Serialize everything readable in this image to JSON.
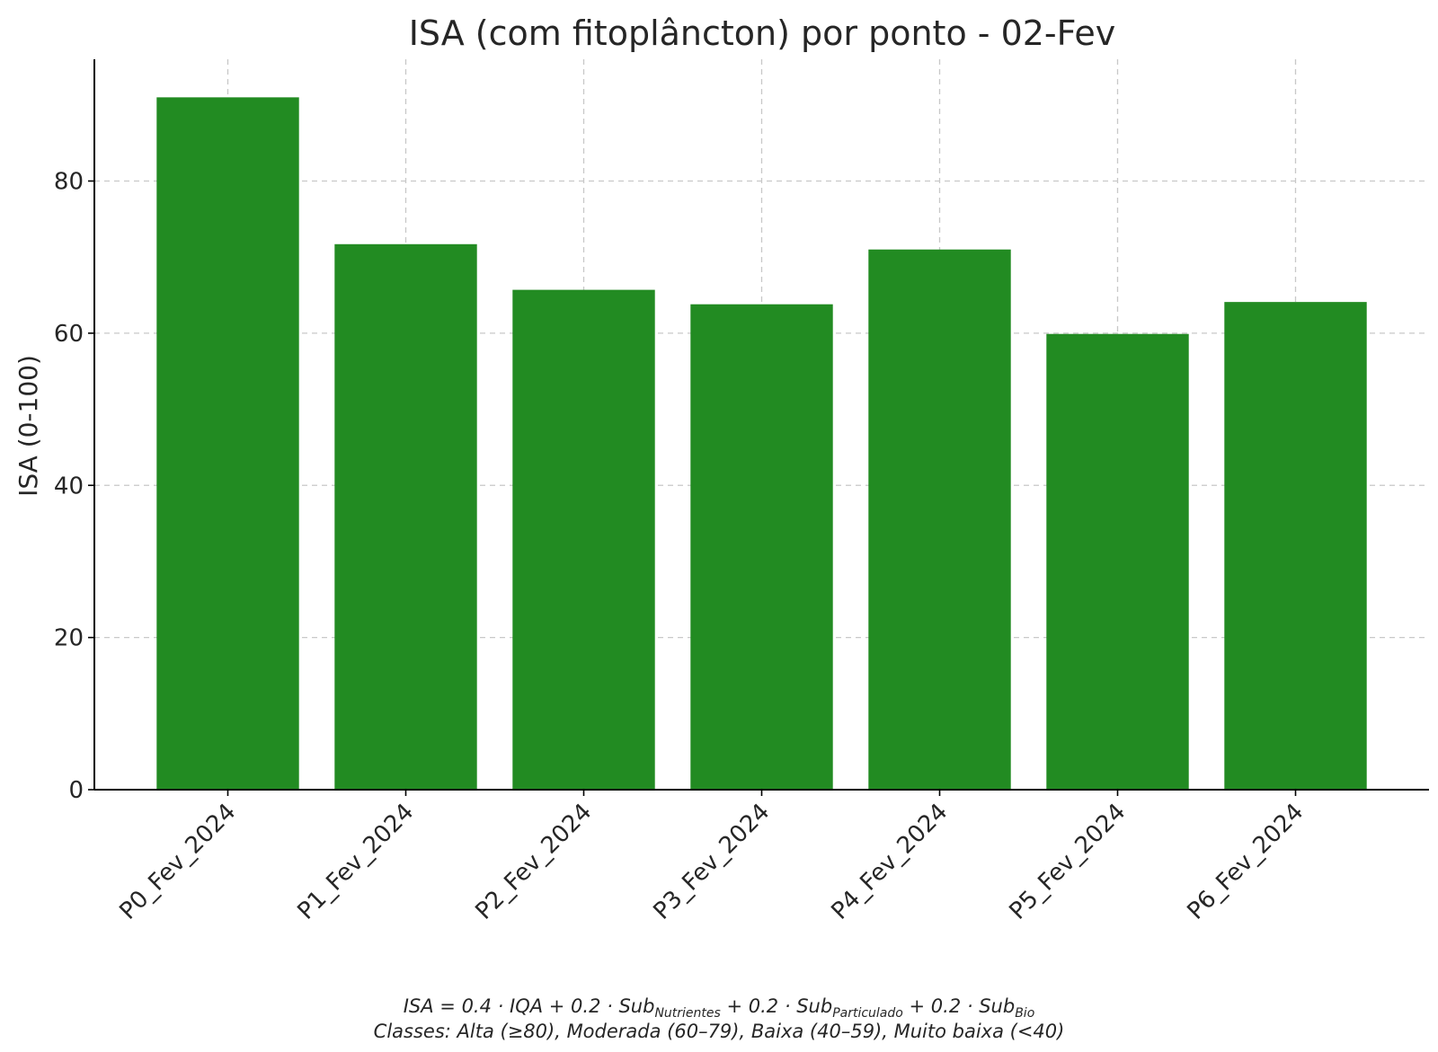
{
  "chart_data": {
    "type": "bar",
    "title": "ISA (com fitoplâncton) por ponto - 02-Fev",
    "xlabel": "",
    "ylabel": "ISA (0-100)",
    "categories": [
      "P0_Fev_2024",
      "P1_Fev_2024",
      "P2_Fev_2024",
      "P3_Fev_2024",
      "P4_Fev_2024",
      "P5_Fev_2024",
      "P6_Fev_2024"
    ],
    "values": [
      91.0,
      71.7,
      65.7,
      63.8,
      71.0,
      59.9,
      64.1
    ],
    "ylim": [
      0,
      96
    ],
    "yticks": [
      0,
      20,
      40,
      60,
      80
    ],
    "grid": true,
    "bar_color": "#228b22",
    "footnote": {
      "formula": {
        "lhs": "ISA",
        "eq": " = 0.4 · ",
        "iqa": "IQA",
        "plus1": " + 0.2 · ",
        "sub1": "Sub",
        "sub1_idx": "Nutrientes",
        "plus2": " + 0.2 · ",
        "sub2": "Sub",
        "sub2_idx": "Particulado",
        "plus3": " + 0.2 · ",
        "sub3": "Sub",
        "sub3_idx": "Bio"
      },
      "classes": "Classes: Alta (≥80), Moderada (60–79), Baixa (40–59), Muito baixa (<40)"
    }
  }
}
